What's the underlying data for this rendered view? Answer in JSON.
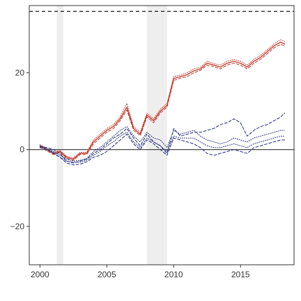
{
  "chart_data": {
    "type": "line",
    "title": "",
    "xlabel": "",
    "ylabel": "",
    "xlim": [
      1999.2,
      2019.0
    ],
    "ylim": [
      -30,
      37.5
    ],
    "x_ticks": [
      2000,
      2005,
      2010,
      2015
    ],
    "x_tick_labels": [
      "2000",
      "2005",
      "2010",
      "2015"
    ],
    "y_ticks": [
      -20,
      0,
      20
    ],
    "y_tick_labels": [
      "−20",
      "0",
      "20"
    ],
    "grid": false,
    "legend": "none",
    "shaded_periods": [
      [
        2001.25,
        2001.75
      ],
      [
        2008.0,
        2009.5
      ]
    ],
    "reference_lines": [
      {
        "axis": "y",
        "value": 0,
        "style": "solid",
        "color": "#333333"
      },
      {
        "axis": "y",
        "value": 36,
        "style": "dashed",
        "color": "#000000"
      }
    ],
    "series": [
      {
        "color": "#c0392b",
        "style": "solid",
        "x": [
          2000,
          2000.5,
          2001,
          2001.5,
          2002,
          2002.5,
          2003,
          2003.5,
          2004,
          2004.5,
          2005,
          2005.5,
          2006,
          2006.5,
          2007,
          2007.5,
          2008,
          2008.5,
          2009,
          2009.5,
          2010,
          2010.5,
          2011,
          2011.5,
          2012,
          2012.5,
          2013,
          2013.5,
          2014,
          2014.5,
          2015,
          2015.5,
          2016,
          2016.5,
          2017,
          2017.5,
          2018,
          2018.3
        ],
        "values": [
          1,
          0,
          -1,
          -0.5,
          -2,
          -2.5,
          -1,
          -1,
          2,
          3.5,
          5,
          6,
          8,
          11,
          5.5,
          4,
          9,
          7.5,
          10,
          11.5,
          18.5,
          19,
          19.5,
          20.5,
          21,
          22.5,
          22,
          21.5,
          22.5,
          23,
          22.5,
          21.5,
          23,
          24,
          25.5,
          27,
          28,
          27.5
        ]
      },
      {
        "color": "#c0392b",
        "style": "dashed",
        "x": [
          2000,
          2000.5,
          2001,
          2001.5,
          2002,
          2002.5,
          2003,
          2003.5,
          2004,
          2004.5,
          2005,
          2005.5,
          2006,
          2006.5,
          2007,
          2007.5,
          2008,
          2008.5,
          2009,
          2009.5,
          2010,
          2010.5,
          2011,
          2011.5,
          2012,
          2012.5,
          2013,
          2013.5,
          2014,
          2014.5,
          2015,
          2015.5,
          2016,
          2016.5,
          2017,
          2017.5,
          2018,
          2018.3
        ],
        "values": [
          0.7,
          -0.3,
          -1.3,
          -0.8,
          -2.3,
          -2.8,
          -1.3,
          -1.3,
          1.5,
          3,
          4.5,
          5.5,
          7.5,
          10.3,
          5,
          3.6,
          8.5,
          7,
          9.5,
          11,
          18,
          18.6,
          19,
          20,
          20.6,
          22,
          21.6,
          21,
          22,
          22.5,
          22,
          21,
          22.5,
          23.5,
          25,
          26.5,
          27.4,
          27
        ]
      },
      {
        "color": "#c0392b",
        "style": "dotted",
        "x": [
          2000,
          2000.5,
          2001,
          2001.5,
          2002,
          2002.5,
          2003,
          2003.5,
          2004,
          2004.5,
          2005,
          2005.5,
          2006,
          2006.5,
          2007,
          2007.5,
          2008,
          2008.5,
          2009,
          2009.5,
          2010,
          2010.5,
          2011,
          2011.5,
          2012,
          2012.5,
          2013,
          2013.5,
          2014,
          2014.5,
          2015,
          2015.5,
          2016,
          2016.5,
          2017,
          2017.5,
          2018,
          2018.3
        ],
        "values": [
          1.3,
          0.3,
          -0.7,
          -0.2,
          -1.7,
          -2.2,
          -0.7,
          -0.7,
          2.5,
          4,
          5.5,
          6.5,
          8.5,
          12,
          6,
          4.5,
          9.5,
          8,
          10.5,
          12,
          19,
          19.4,
          20,
          21,
          21.4,
          23,
          22.4,
          22,
          23,
          23.5,
          23,
          22,
          23.5,
          24.5,
          26,
          27.5,
          28.6,
          28.2
        ]
      },
      {
        "color": "#1f2a7a",
        "style": "dashed",
        "x": [
          2000,
          2000.5,
          2001,
          2001.5,
          2002,
          2002.5,
          2003,
          2003.5,
          2004,
          2004.5,
          2005,
          2005.5,
          2006,
          2006.5,
          2007,
          2007.5,
          2008,
          2008.5,
          2009,
          2009.5,
          2010,
          2010.5,
          2011,
          2011.5,
          2012,
          2012.5,
          2013,
          2013.5,
          2014,
          2014.5,
          2015,
          2015.5,
          2016,
          2016.5,
          2017,
          2017.5,
          2018,
          2018.3
        ],
        "values": [
          1,
          0.5,
          0,
          -1,
          -3,
          -3.5,
          -3,
          -2.5,
          -1,
          0,
          1.5,
          3,
          4,
          5.5,
          3,
          1,
          4,
          2,
          1,
          -1,
          5.5,
          3.5,
          4,
          4.5,
          4.5,
          5,
          5.5,
          6.5,
          7,
          8,
          7,
          3.5,
          5,
          6,
          6.5,
          7.5,
          8.5,
          9.5
        ]
      },
      {
        "color": "#1f2a7a",
        "style": "dashed",
        "x": [
          2000,
          2000.5,
          2001,
          2001.5,
          2002,
          2002.5,
          2003,
          2003.5,
          2004,
          2004.5,
          2005,
          2005.5,
          2006,
          2006.5,
          2007,
          2007.5,
          2008,
          2008.5,
          2009,
          2009.5,
          2010,
          2010.5,
          2011,
          2011.5,
          2012,
          2012.5,
          2013,
          2013.5,
          2014,
          2014.5,
          2015,
          2015.5,
          2016,
          2016.5,
          2017,
          2017.5,
          2018,
          2018.3
        ],
        "values": [
          0.5,
          0,
          -1,
          -2,
          -3.5,
          -4,
          -3.8,
          -3.2,
          -2,
          -1.5,
          -0.5,
          1,
          2.5,
          4,
          1.5,
          0,
          2.5,
          1.5,
          0,
          -1.5,
          3,
          2.5,
          2,
          1.5,
          0.5,
          -1,
          -1.5,
          -1,
          -0.5,
          0,
          -0.5,
          -1,
          0.5,
          1,
          1.5,
          2,
          2.5,
          2.5
        ]
      },
      {
        "color": "#1f2a7a",
        "style": "dotted",
        "x": [
          2000,
          2000.5,
          2001,
          2001.5,
          2002,
          2002.5,
          2003,
          2003.5,
          2004,
          2004.5,
          2005,
          2005.5,
          2006,
          2006.5,
          2007,
          2007.5,
          2008,
          2008.5,
          2009,
          2009.5,
          2010,
          2010.5,
          2011,
          2011.5,
          2012,
          2012.5,
          2013,
          2013.5,
          2014,
          2014.5,
          2015,
          2015.5,
          2016,
          2016.5,
          2017,
          2017.5,
          2018,
          2018.3
        ],
        "values": [
          1,
          0.3,
          -0.5,
          -1.5,
          -2.5,
          -3,
          -2.8,
          -2.3,
          -0.5,
          0.5,
          2,
          3.5,
          5,
          6,
          3.5,
          2,
          4.5,
          3,
          2.5,
          0.5,
          5,
          4,
          4.5,
          5,
          3.5,
          2.5,
          2,
          1.5,
          2,
          3,
          2.5,
          2,
          3,
          3.5,
          4,
          4.5,
          5,
          5
        ]
      },
      {
        "color": "#1f2a7a",
        "style": "dotted",
        "x": [
          2000,
          2000.5,
          2001,
          2001.5,
          2002,
          2002.5,
          2003,
          2003.5,
          2004,
          2004.5,
          2005,
          2005.5,
          2006,
          2006.5,
          2007,
          2007.5,
          2008,
          2008.5,
          2009,
          2009.5,
          2010,
          2010.5,
          2011,
          2011.5,
          2012,
          2012.5,
          2013,
          2013.5,
          2014,
          2014.5,
          2015,
          2015.5,
          2016,
          2016.5,
          2017,
          2017.5,
          2018,
          2018.3
        ],
        "values": [
          0.8,
          0,
          -0.8,
          -2,
          -3,
          -3.3,
          -3.3,
          -2.8,
          -1.5,
          -0.5,
          1,
          2,
          3.5,
          4.5,
          2,
          0.5,
          3,
          2,
          1,
          -0.5,
          3.5,
          3,
          3,
          3,
          2,
          1,
          0.5,
          0.5,
          1,
          1.5,
          1,
          0.5,
          1.5,
          2,
          2.5,
          3,
          3.5,
          3.5
        ]
      }
    ]
  }
}
